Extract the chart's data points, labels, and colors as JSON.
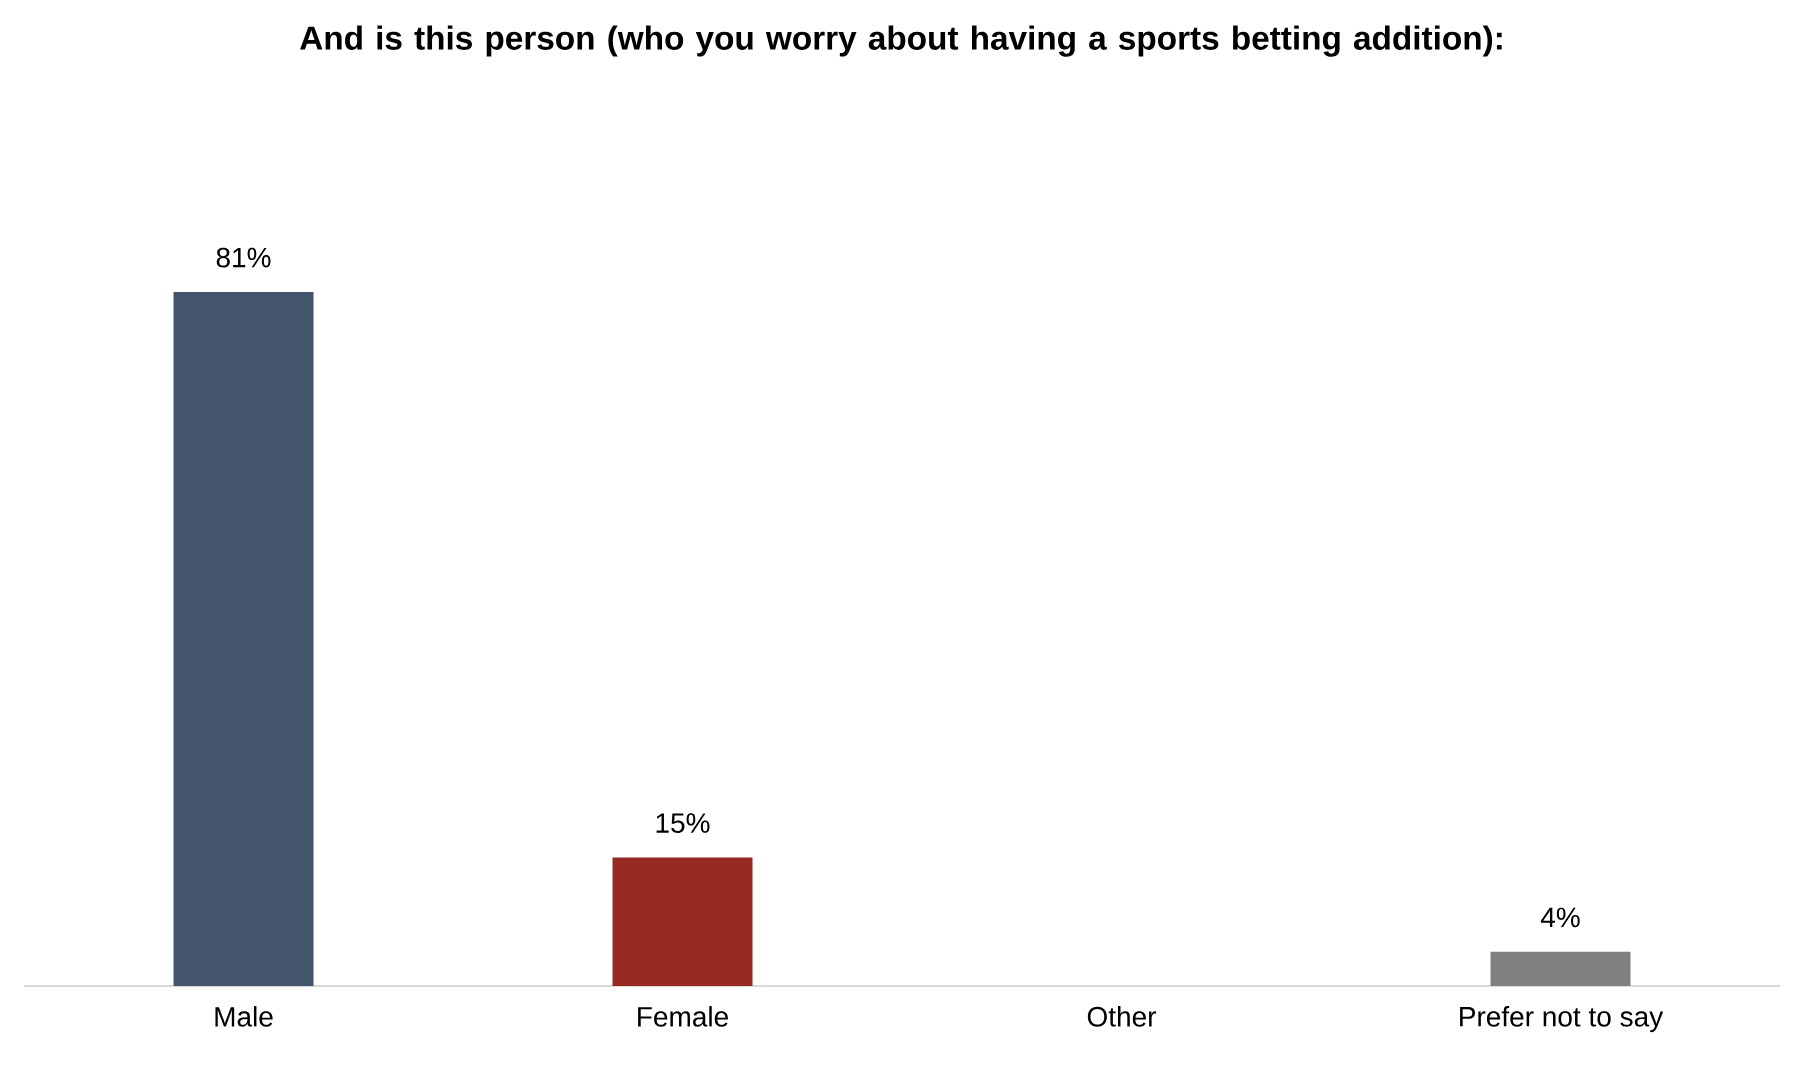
{
  "chart_data": {
    "type": "bar",
    "title": "And is this person (who you worry about having a sports betting addition):",
    "categories": [
      "Male",
      "Female",
      "Other",
      "Prefer not to say"
    ],
    "values": [
      81,
      15,
      0,
      4
    ],
    "colors": [
      "#44546a",
      "#962922",
      "#7f7f7f",
      "#808080"
    ],
    "value_labels": [
      "81%",
      "15%",
      null,
      "4%"
    ],
    "data_labels": false
  }
}
